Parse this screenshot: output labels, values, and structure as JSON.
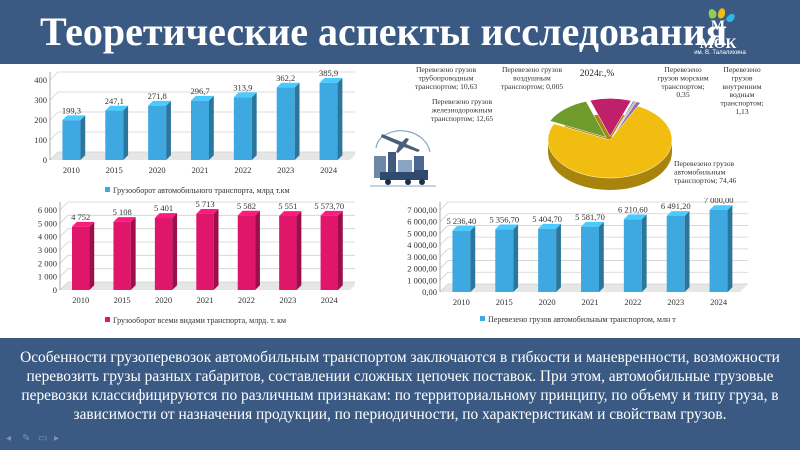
{
  "slide": {
    "title": "Теоретические аспекты исследования",
    "logo_text": "МОК",
    "logo_subtitle": "им. В. Талалихина",
    "description": "Особенности грузоперевозок автомобильным транспортом заключаются в гибкости и маневренности, возможности перевозить грузы разных габаритов, составлении сложных цепочек поставок. При этом, автомобильные грузовые перевозки классифицируются по различным признакам: по территориальному принципу, по объему и типу груза, в зависимости от назначения продукции, по периодичности, по характеристикам и свойствам грузов."
  },
  "colors": {
    "header_bg": "#3a5a84",
    "blue_bar": "#3ea8e0",
    "pink_bar": "#e0166b",
    "pie_yellow": "#f2bd11",
    "pie_green": "#6f9a2c",
    "pie_magenta": "#c01f6a",
    "pie_orange": "#e68a1e"
  },
  "chart_data": [
    {
      "type": "bar",
      "categories": [
        "2010",
        "2015",
        "2020",
        "2021",
        "2022",
        "2023",
        "2024"
      ],
      "values": [
        199.3,
        247.1,
        271.8,
        296.7,
        313.9,
        362.2,
        385.9
      ],
      "value_labels": [
        "199,3",
        "247,1",
        "271,8",
        "296,7",
        "313,9",
        "362,2",
        "385,9"
      ],
      "series": [
        {
          "name": "Грузооборот автомобильного транспорта, млрд т.км",
          "values": [
            199.3,
            247.1,
            271.8,
            296.7,
            313.9,
            362.2,
            385.9
          ]
        }
      ],
      "yticks": [
        "0",
        "100",
        "200",
        "300",
        "400"
      ],
      "ylim": [
        0,
        400
      ],
      "grid": true,
      "legend": "bottom"
    },
    {
      "type": "pie",
      "title": "2024г.,%",
      "slices": [
        {
          "label": "Перевезено грузов автомобильным транспортом; 74,46",
          "value": 74.46
        },
        {
          "label": "Перевезено грузов железнодорожным транспортом; 12,65",
          "value": 12.65
        },
        {
          "label": "Перевезено грузов трубопроводным транспортом; 10,63",
          "value": 10.63
        },
        {
          "label": "Перевезено грузов воздушным транспортом; 0,005",
          "value": 0.005
        },
        {
          "label": "Перевезено грузов морским транспортом; 0,35",
          "value": 0.35
        },
        {
          "label": "Перевезено грузов внутренним водным транспортом; 1,13",
          "value": 1.13
        }
      ]
    },
    {
      "type": "bar",
      "categories": [
        "2010",
        "2015",
        "2020",
        "2021",
        "2022",
        "2023",
        "2024"
      ],
      "values": [
        4752,
        5108,
        5401,
        5713,
        5582,
        5551,
        5573.7
      ],
      "value_labels": [
        "4 752",
        "5 108",
        "5 401",
        "5 713",
        "5 582",
        "5 551",
        "5 573,70"
      ],
      "series": [
        {
          "name": "Грузооборот всеми видами транспорта, млрд. т. км",
          "values": [
            4752,
            5108,
            5401,
            5713,
            5582,
            5551,
            5573.7
          ]
        }
      ],
      "yticks": [
        "0",
        "1 000",
        "2 000",
        "3 000",
        "4 000",
        "5 000",
        "6 000"
      ],
      "ylim": [
        0,
        6000
      ],
      "grid": true,
      "legend": "bottom"
    },
    {
      "type": "bar",
      "categories": [
        "2010",
        "2015",
        "2020",
        "2021",
        "2022",
        "2023",
        "2024"
      ],
      "values": [
        5236.4,
        5356.7,
        5404.7,
        5581.7,
        6210.6,
        6491.2,
        7000.0
      ],
      "value_labels": [
        "5 236,40",
        "5 356,70",
        "5 404,70",
        "5 581,70",
        "6 210,60",
        "6 491,20",
        "7 000,00"
      ],
      "series": [
        {
          "name": "Перевезено грузов автомобильным транспортом, млн т",
          "values": [
            5236.4,
            5356.7,
            5404.7,
            5581.7,
            6210.6,
            6491.2,
            7000.0
          ]
        }
      ],
      "yticks": [
        "0,00",
        "1 000,00",
        "2 000,00",
        "3 000,00",
        "4 000,00",
        "5 000,00",
        "6 000,00",
        "7 000,00"
      ],
      "ylim": [
        0,
        7000
      ],
      "grid": true,
      "legend": "bottom"
    }
  ]
}
